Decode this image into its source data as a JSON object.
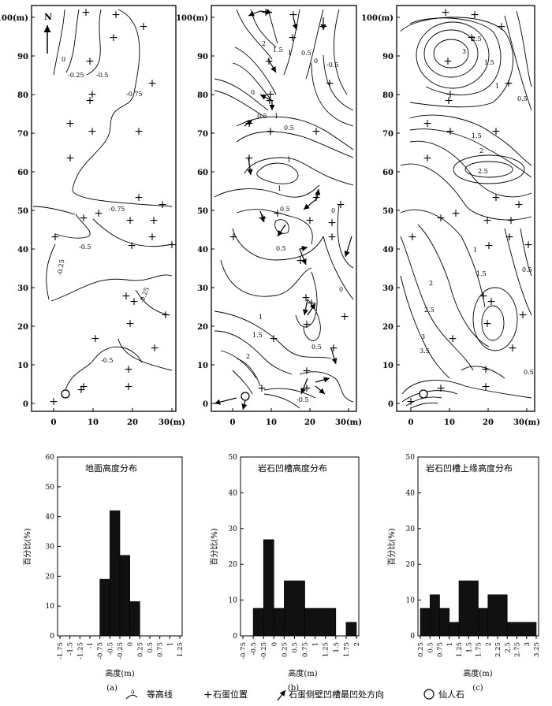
{
  "units": {
    "meter": "(m)"
  },
  "north_label": "N",
  "contour_maps": [
    {
      "y_ticks": [
        "0",
        "10",
        "20",
        "30",
        "40",
        "50",
        "60",
        "70",
        "80",
        "90",
        "100"
      ],
      "y_top_label": "100(m)",
      "x_ticks": [
        "0",
        "10",
        "20",
        "30(m)"
      ],
      "contour_labels": [
        "0",
        "-0.25",
        "-0.5",
        "-0.75",
        "-0.75",
        "-0.5",
        "-0.25",
        "-0.25",
        "-0.5"
      ]
    },
    {
      "y_ticks": [
        "0",
        "10",
        "20",
        "30",
        "40",
        "50",
        "60",
        "70",
        "80",
        "90",
        "100"
      ],
      "y_top_label": "100(m)",
      "x_ticks": [
        "0",
        "10",
        "20",
        "30(m)"
      ],
      "contour_labels": [
        "2",
        "1.5",
        "1",
        "0.5",
        "0",
        "-0.5",
        "0",
        "0.5",
        "1",
        "1",
        "0.5",
        "1",
        "0",
        "0.5",
        "0.5",
        "1",
        "1.5",
        "2",
        "0.5",
        "0",
        "-0.5"
      ]
    },
    {
      "y_ticks": [
        "0",
        "10",
        "20",
        "30",
        "40",
        "50",
        "60",
        "70",
        "80",
        "90",
        "100"
      ],
      "y_top_label": "100(m)",
      "x_ticks": [
        "0",
        "10",
        "20",
        "30(m)"
      ],
      "contour_labels": [
        "3",
        "2.5",
        "1.5",
        "1",
        "0.5",
        "1.5",
        "2",
        "2.5",
        "0.5",
        "1",
        "1.5",
        "2",
        "2.5",
        "3",
        "3.5",
        "0.5"
      ]
    }
  ],
  "chart_data": [
    {
      "type": "bar",
      "title": "地面高度分布",
      "xlabel": "高度(m)",
      "ylabel": "百分比(%)",
      "panel_label": "(a)",
      "ylim": [
        0,
        60
      ],
      "yticks": [
        "0",
        "10",
        "20",
        "30",
        "40",
        "50",
        "60"
      ],
      "x_tick_labels": [
        "-1.75",
        "-1.5",
        "-1.25",
        "-1",
        "-0.75",
        "-0.5",
        "-0.25",
        "0",
        "0.25",
        "0.5",
        "0.75",
        "1",
        "1.25"
      ],
      "x_start": -1.75,
      "x_step": 0.25,
      "bins": [
        {
          "from": -0.75,
          "to": -0.5,
          "value": 19
        },
        {
          "from": -0.5,
          "to": -0.25,
          "value": 42
        },
        {
          "from": -0.25,
          "to": 0,
          "value": 27
        },
        {
          "from": 0,
          "to": 0.25,
          "value": 11.5
        }
      ]
    },
    {
      "type": "bar",
      "title": "岩石凹槽高度分布",
      "xlabel": "高度(m)",
      "ylabel": "百分比(%)",
      "panel_label": "(b)",
      "ylim": [
        0,
        50
      ],
      "yticks": [
        "0",
        "10",
        "20",
        "30",
        "40",
        "50"
      ],
      "x_tick_labels": [
        "-0.75",
        "-0.5",
        "-0.25",
        "0",
        "0.25",
        "0.5",
        "0.75",
        "1",
        "1.25",
        "1.5",
        "1.75",
        "2"
      ],
      "x_start": -0.75,
      "x_step": 0.25,
      "bins": [
        {
          "from": -0.5,
          "to": -0.25,
          "value": 7.7
        },
        {
          "from": -0.25,
          "to": 0,
          "value": 26.9
        },
        {
          "from": 0,
          "to": 0.25,
          "value": 7.7
        },
        {
          "from": 0.25,
          "to": 0.75,
          "value": 15.4
        },
        {
          "from": 0.75,
          "to": 1.5,
          "value": 7.7
        },
        {
          "from": 1.75,
          "to": 2,
          "value": 3.8
        }
      ]
    },
    {
      "type": "bar",
      "title": "岩石凹槽上缘高度分布",
      "xlabel": "高度(m)",
      "ylabel": "百分比(%)",
      "panel_label": "(c)",
      "ylim": [
        0,
        50
      ],
      "yticks": [
        "0",
        "10",
        "20",
        "30",
        "40",
        "50"
      ],
      "x_tick_labels": [
        "0.25",
        "0.5",
        "0.75",
        "1",
        "1.25",
        "1.5",
        "1.75",
        "2",
        "2.25",
        "2.5",
        "2.75",
        "3",
        "3.25"
      ],
      "x_start": 0.25,
      "x_step": 0.25,
      "bins": [
        {
          "from": 0.25,
          "to": 0.5,
          "value": 7.7
        },
        {
          "from": 0.5,
          "to": 0.75,
          "value": 11.5
        },
        {
          "from": 0.75,
          "to": 1,
          "value": 7.7
        },
        {
          "from": 1,
          "to": 1.25,
          "value": 3.8
        },
        {
          "from": 1.25,
          "to": 1.75,
          "value": 15.4
        },
        {
          "from": 1.75,
          "to": 2,
          "value": 7.7
        },
        {
          "from": 2,
          "to": 2.5,
          "value": 11.5
        },
        {
          "from": 2.5,
          "to": 3.25,
          "value": 3.8
        }
      ]
    }
  ],
  "legend": {
    "contour": "等高线",
    "contour_glyph_label": "0",
    "rock_egg": "石蛋位置",
    "groove_direction": "石蛋侧壁凹槽最凹处方向",
    "immortal_stone": "仙人石"
  },
  "colors": {
    "ink": "#000000",
    "paper": "#ffffff"
  }
}
